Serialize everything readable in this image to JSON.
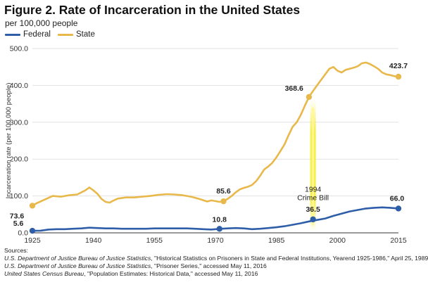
{
  "chart_data": {
    "type": "line",
    "title": "Figure 2. Rate of Incarceration in the United States",
    "subtitle": "per 100,000 people",
    "ylabel": "Incarceration rate (per 100,000 people)",
    "xlabel": "",
    "xlim": [
      1925,
      2015
    ],
    "ylim": [
      0,
      500
    ],
    "x_ticks": [
      "1925",
      "1940",
      "1955",
      "1970",
      "1985",
      "2000",
      "2015"
    ],
    "y_ticks": [
      "0.0",
      "100.0",
      "200.0",
      "300.0",
      "400.0",
      "500.0"
    ],
    "grid": "horizontal",
    "legend_position": "top-left",
    "series": [
      {
        "name": "Federal",
        "color": "#2f5ea8",
        "x": [
          1925,
          1927,
          1929,
          1931,
          1933,
          1935,
          1937,
          1939,
          1941,
          1943,
          1945,
          1947,
          1949,
          1951,
          1953,
          1955,
          1957,
          1959,
          1961,
          1963,
          1965,
          1967,
          1969,
          1971,
          1973,
          1975,
          1977,
          1979,
          1981,
          1983,
          1985,
          1987,
          1989,
          1991,
          1993,
          1995,
          1997,
          1999,
          2001,
          2003,
          2005,
          2007,
          2009,
          2011,
          2013,
          2015
        ],
        "values": [
          5.6,
          6,
          9,
          10,
          10,
          11,
          12,
          14,
          13,
          12,
          12,
          11,
          11,
          11,
          11,
          12,
          12,
          12,
          12,
          12,
          11,
          10,
          9,
          10.8,
          12,
          13,
          12,
          10,
          11,
          13,
          15,
          18,
          22,
          26,
          31,
          35,
          39,
          46,
          52,
          58,
          62,
          66,
          68,
          69,
          68,
          66.0
        ]
      },
      {
        "name": "State",
        "color": "#e8b84a",
        "x": [
          1925,
          1926,
          1928,
          1930,
          1932,
          1934,
          1936,
          1938,
          1939,
          1940,
          1941,
          1942,
          1943,
          1944,
          1945,
          1946,
          1948,
          1950,
          1952,
          1954,
          1956,
          1958,
          1960,
          1962,
          1964,
          1966,
          1968,
          1969,
          1970,
          1971,
          1972,
          1973,
          1974,
          1975,
          1976,
          1977,
          1978,
          1979,
          1980,
          1981,
          1982,
          1983,
          1984,
          1985,
          1986,
          1987,
          1988,
          1989,
          1990,
          1991,
          1992,
          1993,
          1994,
          1995,
          1996,
          1997,
          1998,
          1999,
          2000,
          2001,
          2002,
          2003,
          2004,
          2005,
          2006,
          2007,
          2008,
          2009,
          2010,
          2011,
          2012,
          2013,
          2014,
          2015
        ],
        "values": [
          73.6,
          80,
          90,
          100,
          98,
          102,
          104,
          115,
          123,
          115,
          106,
          92,
          84,
          82,
          88,
          93,
          96,
          96,
          98,
          100,
          103,
          105,
          104,
          102,
          98,
          92,
          85,
          88,
          86,
          84,
          85.6,
          92,
          100,
          110,
          118,
          122,
          125,
          130,
          140,
          155,
          172,
          180,
          190,
          205,
          222,
          240,
          265,
          288,
          300,
          320,
          345,
          368.6,
          385,
          400,
          415,
          430,
          445,
          450,
          440,
          435,
          442,
          445,
          448,
          452,
          460,
          462,
          458,
          452,
          445,
          435,
          430,
          428,
          425,
          423.7
        ]
      }
    ],
    "annotations": [
      {
        "text": "5.6",
        "x": 1925,
        "y": 5.6,
        "series": "Federal"
      },
      {
        "text": "73.6",
        "x": 1925,
        "y": 73.6,
        "series": "State"
      },
      {
        "text": "10.8",
        "x": 1971,
        "y": 10.8,
        "series": "Federal"
      },
      {
        "text": "85.6",
        "x": 1972,
        "y": 85.6,
        "series": "State"
      },
      {
        "text": "36.5",
        "x": 1994,
        "y": 36.5,
        "series": "Federal"
      },
      {
        "text": "368.6",
        "x": 1993,
        "y": 368.6,
        "series": "State"
      },
      {
        "text": "66.0",
        "x": 2015,
        "y": 66.0,
        "series": "Federal"
      },
      {
        "text": "423.7",
        "x": 2015,
        "y": 423.7,
        "series": "State"
      }
    ],
    "event": {
      "year_label": "1994",
      "label": "Crime Bill",
      "x": 1994,
      "color": "#f5ee3a"
    }
  },
  "sources": {
    "heading": "Sources:",
    "lines": [
      {
        "italic": "U.S. Department of Justice Bureau of Justice Statistics",
        "rest": ", \"Historical Statistics on Prisoners in State and Federal Institutions, Yearend 1925-1986,\" April 25, 1989"
      },
      {
        "italic": "U.S. Department of Justice Bureau of Justice Statistics",
        "rest": ", \"Prisoner Series,\" accessed May 11, 2016"
      },
      {
        "italic": "United States Census Bureau",
        "rest": ", \"Population Estimates: Historical Data,\" accessed May 11, 2016"
      }
    ]
  }
}
